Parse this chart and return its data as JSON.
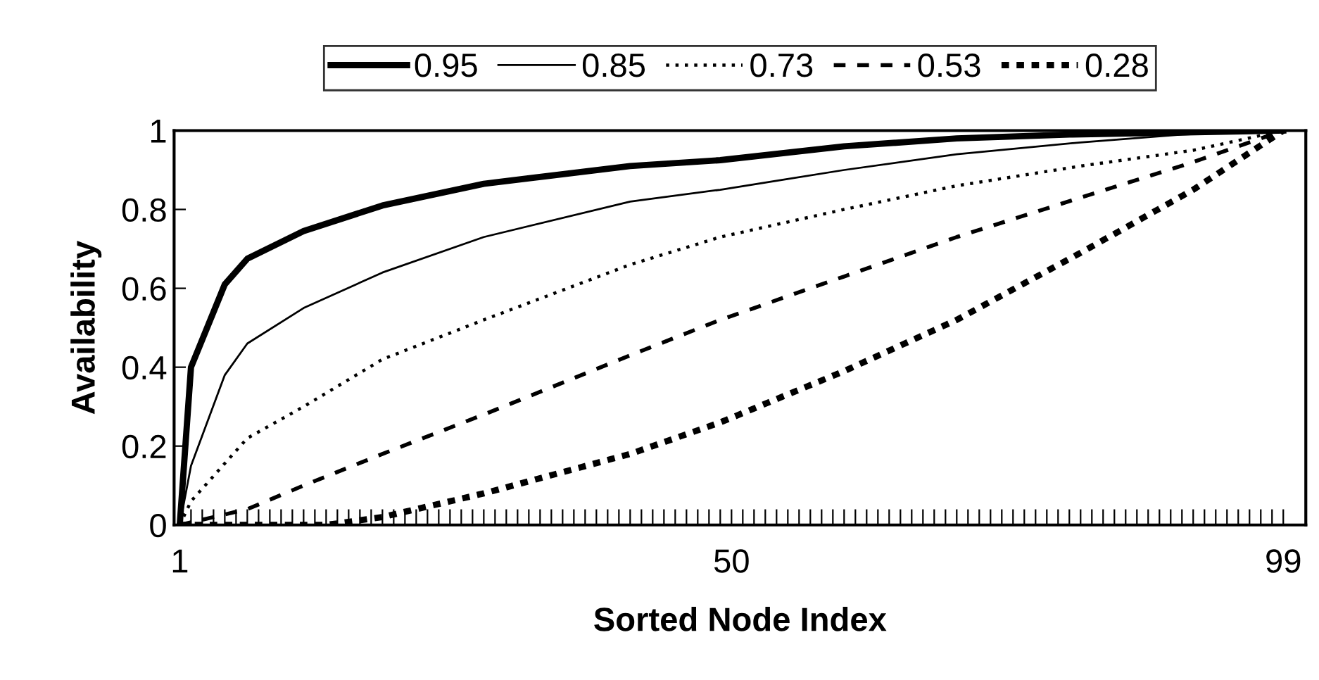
{
  "chart_data": {
    "type": "line",
    "xlabel": "Sorted Node Index",
    "ylabel": "Availability",
    "xlim": [
      0.5,
      101
    ],
    "ylim": [
      0,
      1
    ],
    "xticks": [
      1,
      {
        "value": 2,
        "label": null
      },
      {
        "value": 3,
        "label": null
      },
      {
        "value": 4,
        "label": null
      },
      {
        "value": 5,
        "label": null
      },
      {
        "value": 6,
        "label": null
      },
      {
        "value": 7,
        "label": null
      },
      {
        "value": 8,
        "label": null
      },
      {
        "value": 9,
        "label": null
      },
      {
        "value": 10,
        "label": null
      },
      {
        "value": 11,
        "label": null
      },
      {
        "value": 12,
        "label": null
      },
      {
        "value": 13,
        "label": null
      },
      {
        "value": 14,
        "label": null
      },
      {
        "value": 15,
        "label": null
      },
      {
        "value": 16,
        "label": null
      },
      {
        "value": 17,
        "label": null
      },
      {
        "value": 18,
        "label": null
      },
      {
        "value": 19,
        "label": null
      },
      {
        "value": 20,
        "label": null
      },
      {
        "value": 21,
        "label": null
      },
      {
        "value": 22,
        "label": null
      },
      {
        "value": 23,
        "label": null
      },
      {
        "value": 24,
        "label": null
      },
      {
        "value": 25,
        "label": null
      },
      {
        "value": 26,
        "label": null
      },
      {
        "value": 27,
        "label": null
      },
      {
        "value": 28,
        "label": null
      },
      {
        "value": 29,
        "label": null
      },
      {
        "value": 30,
        "label": null
      },
      {
        "value": 31,
        "label": null
      },
      {
        "value": 32,
        "label": null
      },
      {
        "value": 33,
        "label": null
      },
      {
        "value": 34,
        "label": null
      },
      {
        "value": 35,
        "label": null
      },
      {
        "value": 36,
        "label": null
      },
      {
        "value": 37,
        "label": null
      },
      {
        "value": 38,
        "label": null
      },
      {
        "value": 39,
        "label": null
      },
      {
        "value": 40,
        "label": null
      },
      {
        "value": 41,
        "label": null
      },
      {
        "value": 42,
        "label": null
      },
      {
        "value": 43,
        "label": null
      },
      {
        "value": 44,
        "label": null
      },
      {
        "value": 45,
        "label": null
      },
      {
        "value": 46,
        "label": null
      },
      {
        "value": 47,
        "label": null
      },
      {
        "value": 48,
        "label": null
      },
      {
        "value": 49,
        "label": null
      },
      50,
      {
        "value": 51,
        "label": null
      },
      {
        "value": 52,
        "label": null
      },
      {
        "value": 53,
        "label": null
      },
      {
        "value": 54,
        "label": null
      },
      {
        "value": 55,
        "label": null
      },
      {
        "value": 56,
        "label": null
      },
      {
        "value": 57,
        "label": null
      },
      {
        "value": 58,
        "label": null
      },
      {
        "value": 59,
        "label": null
      },
      {
        "value": 60,
        "label": null
      },
      {
        "value": 61,
        "label": null
      },
      {
        "value": 62,
        "label": null
      },
      {
        "value": 63,
        "label": null
      },
      {
        "value": 64,
        "label": null
      },
      {
        "value": 65,
        "label": null
      },
      {
        "value": 66,
        "label": null
      },
      {
        "value": 67,
        "label": null
      },
      {
        "value": 68,
        "label": null
      },
      {
        "value": 69,
        "label": null
      },
      {
        "value": 70,
        "label": null
      },
      {
        "value": 71,
        "label": null
      },
      {
        "value": 72,
        "label": null
      },
      {
        "value": 73,
        "label": null
      },
      {
        "value": 74,
        "label": null
      },
      {
        "value": 75,
        "label": null
      },
      {
        "value": 76,
        "label": null
      },
      {
        "value": 77,
        "label": null
      },
      {
        "value": 78,
        "label": null
      },
      {
        "value": 79,
        "label": null
      },
      {
        "value": 80,
        "label": null
      },
      {
        "value": 81,
        "label": null
      },
      {
        "value": 82,
        "label": null
      },
      {
        "value": 83,
        "label": null
      },
      {
        "value": 84,
        "label": null
      },
      {
        "value": 85,
        "label": null
      },
      {
        "value": 86,
        "label": null
      },
      {
        "value": 87,
        "label": null
      },
      {
        "value": 88,
        "label": null
      },
      {
        "value": 89,
        "label": null
      },
      {
        "value": 90,
        "label": null
      },
      {
        "value": 91,
        "label": null
      },
      {
        "value": 92,
        "label": null
      },
      {
        "value": 93,
        "label": null
      },
      {
        "value": 94,
        "label": null
      },
      {
        "value": 95,
        "label": null
      },
      {
        "value": 96,
        "label": null
      },
      {
        "value": 97,
        "label": null
      },
      {
        "value": 98,
        "label": null
      },
      99
    ],
    "yticks": [
      0,
      0.2,
      0.4,
      0.6,
      0.8,
      1
    ],
    "grid": false,
    "legend": "top",
    "marker": "none",
    "series": [
      {
        "name": "0.95",
        "color": "#000000",
        "line_style": "solid",
        "x": [
          1,
          2,
          5,
          7,
          12,
          19,
          28,
          41,
          49,
          60,
          70,
          80,
          99
        ],
        "values": [
          0,
          0.4,
          0.61,
          0.675,
          0.745,
          0.81,
          0.865,
          0.91,
          0.925,
          0.96,
          0.98,
          0.99,
          1
        ]
      },
      {
        "name": "0.85",
        "color": "#000000",
        "line_style": "solid",
        "x": [
          1,
          2,
          5,
          7,
          12,
          19,
          28,
          41,
          49,
          60,
          70,
          81,
          90,
          99
        ],
        "values": [
          0,
          0.15,
          0.38,
          0.46,
          0.55,
          0.64,
          0.73,
          0.82,
          0.85,
          0.9,
          0.94,
          0.97,
          0.99,
          1
        ]
      },
      {
        "name": "0.73",
        "color": "#000000",
        "line_style": "dotted",
        "x": [
          1,
          2,
          7,
          12,
          19,
          28,
          41,
          49,
          60,
          70,
          81,
          91,
          99
        ],
        "values": [
          0,
          0.06,
          0.22,
          0.3,
          0.42,
          0.52,
          0.66,
          0.73,
          0.8,
          0.86,
          0.91,
          0.95,
          1
        ]
      },
      {
        "name": "0.53",
        "color": "#000000",
        "line_style": "dashed",
        "x": [
          1,
          7,
          12,
          19,
          28,
          41,
          49,
          60,
          70,
          81,
          91,
          99
        ],
        "values": [
          0,
          0.04,
          0.1,
          0.18,
          0.28,
          0.43,
          0.52,
          0.63,
          0.73,
          0.83,
          0.92,
          1
        ]
      },
      {
        "name": "0.28",
        "color": "#000000",
        "line_style": "dashed",
        "x": [
          1,
          14,
          19,
          28,
          41,
          49,
          60,
          70,
          81,
          91,
          99
        ],
        "values": [
          0,
          0,
          0.02,
          0.08,
          0.18,
          0.26,
          0.39,
          0.52,
          0.69,
          0.85,
          1
        ]
      }
    ]
  }
}
